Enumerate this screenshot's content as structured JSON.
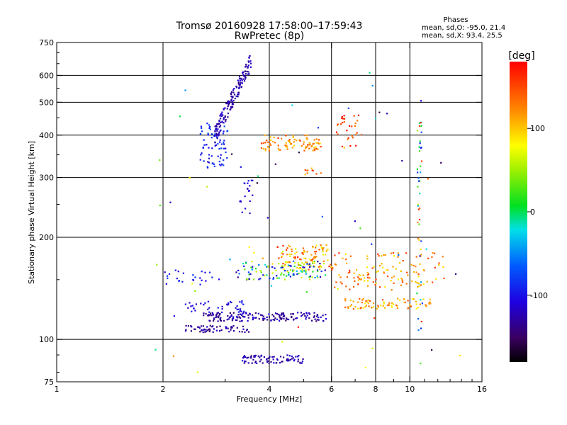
{
  "chart_data": {
    "type": "scatter",
    "title": "Tromsø 20160928 17:58:00–17:59:43",
    "subtitle": "RwPretec (8p)",
    "xlabel": "Frequency [MHz]",
    "ylabel": "Stationary phase Virtual Height [km]",
    "x_scale": "log",
    "y_scale": "log",
    "xlim": [
      1,
      16
    ],
    "ylim": [
      75,
      750
    ],
    "x_ticks": [
      1,
      2,
      4,
      6,
      8,
      10,
      16
    ],
    "x_tick_labels": [
      "1",
      "2",
      "4",
      "6",
      "8",
      "10",
      "16"
    ],
    "y_ticks": [
      75,
      100,
      200,
      300,
      400,
      500,
      600,
      750
    ],
    "y_tick_labels": [
      "75",
      "100",
      "200",
      "300",
      "400",
      "500",
      "600",
      "750"
    ],
    "grid": true,
    "info": {
      "heading": "Phases",
      "line1": "mean, sd,O: -95.0, 21.4",
      "line2": "mean, sd,X:  93.4, 25.5"
    },
    "colorbar": {
      "label": "[deg]",
      "range": [
        -180,
        180
      ],
      "ticks": [
        100,
        0,
        -100
      ],
      "tick_labels": [
        "100",
        "0",
        "-100"
      ]
    },
    "clusters": [
      {
        "f": [
          2.55,
          3.05
        ],
        "h": [
          320,
          430
        ],
        "ph": [
          -110,
          -70
        ],
        "n": 70
      },
      {
        "f": [
          2.8,
          3.55
        ],
        "h": [
          400,
          660
        ],
        "ph": [
          -140,
          -110
        ],
        "n": 150
      },
      {
        "f": [
          3.8,
          5.6
        ],
        "h": [
          360,
          400
        ],
        "ph": [
          90,
          160
        ],
        "n": 90
      },
      {
        "f": [
          5.0,
          5.6
        ],
        "h": [
          300,
          320
        ],
        "ph": [
          100,
          160
        ],
        "n": 10
      },
      {
        "f": [
          6.2,
          7.3
        ],
        "h": [
          370,
          460
        ],
        "ph": [
          120,
          180
        ],
        "n": 30
      },
      {
        "f": [
          3.3,
          3.6
        ],
        "h": [
          235,
          300
        ],
        "ph": [
          -130,
          -100
        ],
        "n": 20
      },
      {
        "f": [
          4.2,
          6.0
        ],
        "h": [
          160,
          190
        ],
        "ph": [
          60,
          170
        ],
        "n": 110
      },
      {
        "f": [
          3.2,
          5.8
        ],
        "h": [
          150,
          170
        ],
        "ph": [
          -140,
          100
        ],
        "n": 120
      },
      {
        "f": [
          6.0,
          12.5
        ],
        "h": [
          140,
          180
        ],
        "ph": [
          80,
          160
        ],
        "n": 130
      },
      {
        "f": [
          2.0,
          3.0
        ],
        "h": [
          145,
          160
        ],
        "ph": [
          -120,
          -80
        ],
        "n": 25
      },
      {
        "f": [
          2.3,
          3.5
        ],
        "h": [
          120,
          130
        ],
        "ph": [
          -120,
          -90
        ],
        "n": 40
      },
      {
        "f": [
          2.6,
          5.8
        ],
        "h": [
          113,
          120
        ],
        "ph": [
          -150,
          -110
        ],
        "n": 170
      },
      {
        "f": [
          2.3,
          3.5
        ],
        "h": [
          105,
          110
        ],
        "ph": [
          -150,
          -110
        ],
        "n": 60
      },
      {
        "f": [
          6.5,
          11.5
        ],
        "h": [
          123,
          132
        ],
        "ph": [
          80,
          150
        ],
        "n": 80
      },
      {
        "f": [
          3.3,
          5.0
        ],
        "h": [
          85,
          90
        ],
        "ph": [
          -140,
          -110
        ],
        "n": 80
      },
      {
        "f": [
          10.5,
          10.8
        ],
        "h": [
          100,
          510
        ],
        "ph": [
          -120,
          180
        ],
        "n": 45
      },
      {
        "f": [
          1.9,
          15.0
        ],
        "h": [
          80,
          640
        ],
        "ph": [
          -170,
          170
        ],
        "n": 60
      }
    ]
  }
}
